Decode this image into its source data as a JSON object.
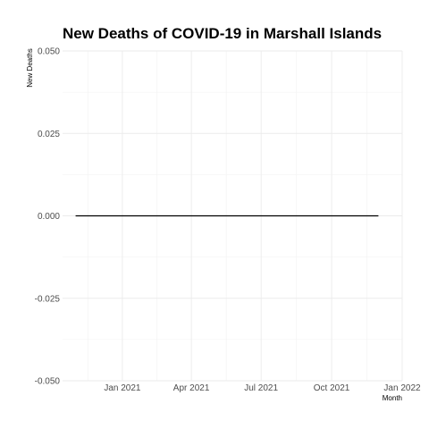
{
  "chart_data": {
    "type": "line",
    "title": "New Deaths of COVID-19 in Marshall Islands",
    "xlabel": "Month",
    "ylabel": "New Deaths",
    "x_range": [
      "2020-10-15",
      "2022-01-01"
    ],
    "ylim": [
      -0.05,
      0.05
    ],
    "y_ticks": [
      {
        "value": 0.05,
        "label": "0.050"
      },
      {
        "value": 0.025,
        "label": "0.025"
      },
      {
        "value": 0.0,
        "label": "0.000"
      },
      {
        "value": -0.025,
        "label": "-0.025"
      },
      {
        "value": -0.05,
        "label": "-0.050"
      }
    ],
    "x_ticks": [
      {
        "date": "2021-01-01",
        "label": "Jan 2021"
      },
      {
        "date": "2021-04-01",
        "label": "Apr 2021"
      },
      {
        "date": "2021-07-01",
        "label": "Jul 2021"
      },
      {
        "date": "2021-10-01",
        "label": "Oct 2021"
      },
      {
        "date": "2022-01-01",
        "label": "Jan 2022"
      }
    ],
    "series": [
      {
        "color": "#000000",
        "points": [
          {
            "x": "2020-11-01",
            "y": 0
          },
          {
            "x": "2021-12-01",
            "y": 0
          }
        ]
      }
    ],
    "grid": true,
    "legend": "none"
  }
}
